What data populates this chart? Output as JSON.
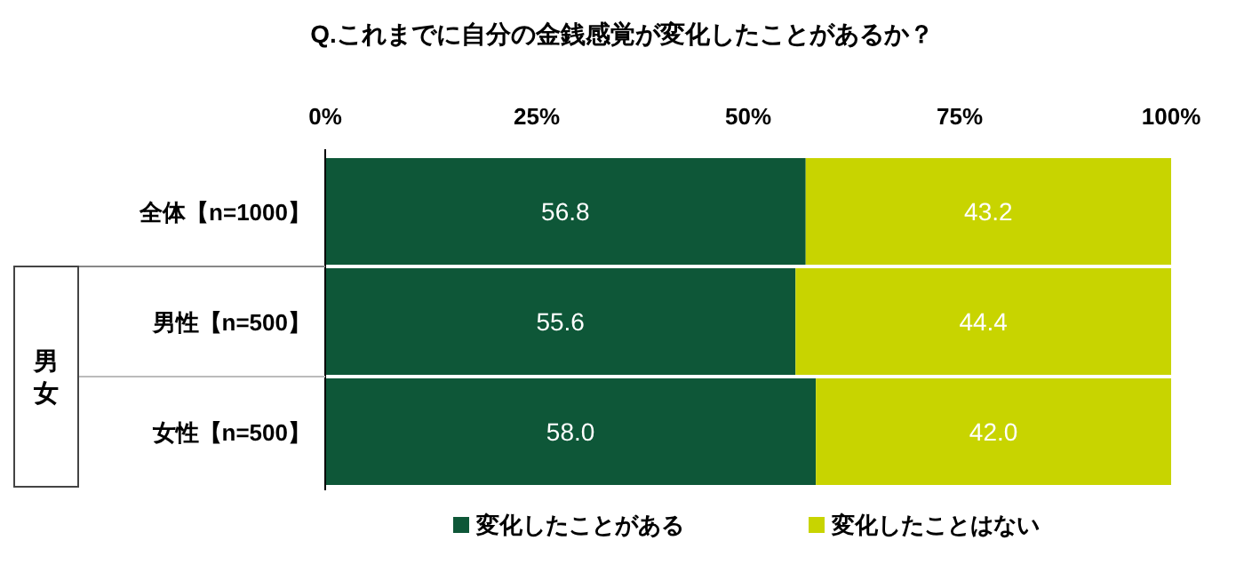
{
  "chart_data": {
    "type": "bar",
    "orientation": "horizontal",
    "stacked": true,
    "title": "Q.これまでに自分の金銭感覚が変化したことがあるか？",
    "categories": [
      "全体【n=1000】",
      "男性【n=500】",
      "女性【n=500】"
    ],
    "series": [
      {
        "name": "変化したことがある",
        "color": "#0e5738",
        "values": [
          56.8,
          55.6,
          58.0
        ],
        "value_labels": [
          "56.8",
          "55.6",
          "58.0"
        ]
      },
      {
        "name": "変化したことはない",
        "color": "#c8d400",
        "values": [
          43.2,
          44.4,
          42.0
        ],
        "value_labels": [
          "43.2",
          "44.4",
          "42.0"
        ]
      }
    ],
    "xlim": [
      0,
      100
    ],
    "xticks": [
      {
        "value": 0,
        "label": "0%"
      },
      {
        "value": 25,
        "label": "25%"
      },
      {
        "value": 50,
        "label": "50%"
      },
      {
        "value": 75,
        "label": "75%"
      },
      {
        "value": 100,
        "label": "100%"
      }
    ],
    "legend": "bottom",
    "annotations": [
      "男女"
    ]
  }
}
